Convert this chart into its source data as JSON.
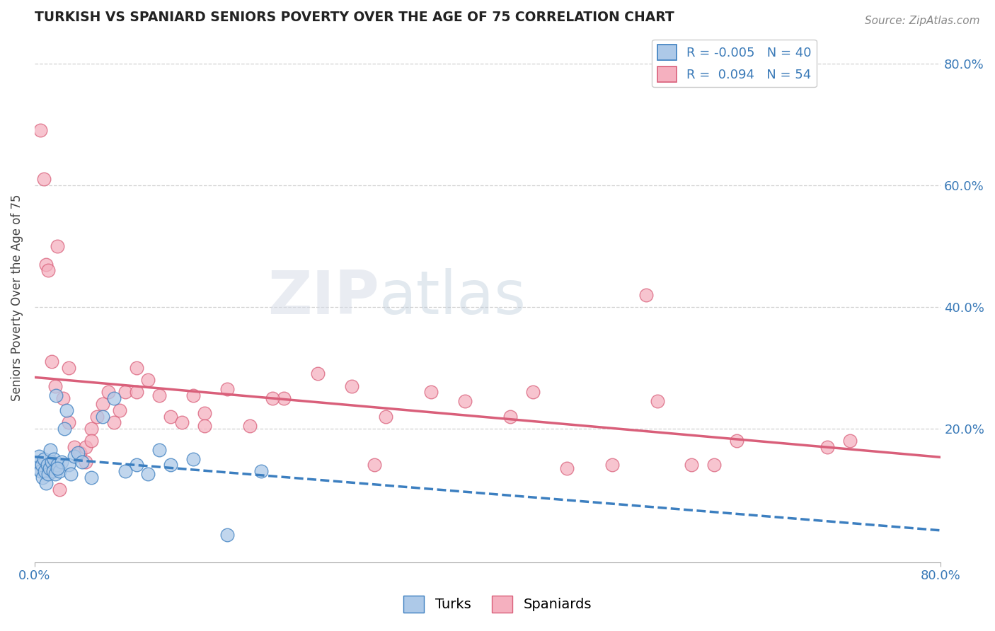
{
  "title": "TURKISH VS SPANIARD SENIORS POVERTY OVER THE AGE OF 75 CORRELATION CHART",
  "source": "Source: ZipAtlas.com",
  "ylabel": "Seniors Poverty Over the Age of 75",
  "legend_turks": "Turks",
  "legend_spaniards": "Spaniards",
  "turks_R": "-0.005",
  "turks_N": "40",
  "spaniards_R": "0.094",
  "spaniards_N": "54",
  "turks_color": "#adc9e8",
  "spaniards_color": "#f5b0bf",
  "turks_line_color": "#3c7fc0",
  "spaniards_line_color": "#d95f7a",
  "watermark_zip": "ZIP",
  "watermark_atlas": "atlas",
  "turks_x": [
    0.2,
    0.3,
    0.4,
    0.5,
    0.6,
    0.7,
    0.8,
    0.9,
    1.0,
    1.1,
    1.2,
    1.3,
    1.4,
    1.5,
    1.6,
    1.7,
    1.8,
    1.9,
    2.0,
    2.2,
    2.4,
    2.6,
    2.8,
    3.0,
    3.2,
    3.5,
    3.8,
    4.2,
    5.0,
    6.0,
    7.0,
    8.0,
    9.0,
    10.0,
    11.0,
    12.0,
    14.0,
    17.0,
    20.0,
    2.0
  ],
  "turks_y": [
    13.5,
    14.5,
    15.5,
    13.0,
    14.0,
    12.0,
    15.0,
    13.0,
    11.0,
    14.0,
    12.5,
    13.5,
    16.5,
    14.5,
    13.0,
    15.0,
    12.5,
    25.5,
    14.0,
    13.0,
    14.5,
    20.0,
    23.0,
    14.0,
    12.5,
    15.5,
    16.0,
    14.5,
    12.0,
    22.0,
    25.0,
    13.0,
    14.0,
    12.5,
    16.5,
    14.0,
    15.0,
    2.5,
    13.0,
    13.5
  ],
  "spaniards_x": [
    0.5,
    0.8,
    1.0,
    1.2,
    1.5,
    1.8,
    2.0,
    2.5,
    3.0,
    3.5,
    4.0,
    4.5,
    5.0,
    5.5,
    6.0,
    6.5,
    7.0,
    7.5,
    8.0,
    9.0,
    10.0,
    11.0,
    12.0,
    13.0,
    14.0,
    15.0,
    17.0,
    19.0,
    22.0,
    25.0,
    28.0,
    31.0,
    35.0,
    38.0,
    42.0,
    44.0,
    55.0,
    58.0,
    60.0,
    62.0,
    3.0,
    9.0,
    15.0,
    21.0,
    5.0,
    30.0,
    47.0,
    51.0,
    54.0,
    70.0,
    72.0,
    1.5,
    4.5,
    2.2
  ],
  "spaniards_y": [
    69.0,
    61.0,
    47.0,
    46.0,
    31.0,
    27.0,
    50.0,
    25.0,
    21.0,
    17.0,
    16.0,
    17.0,
    20.0,
    22.0,
    24.0,
    26.0,
    21.0,
    23.0,
    26.0,
    30.0,
    28.0,
    25.5,
    22.0,
    21.0,
    25.5,
    22.5,
    26.5,
    20.5,
    25.0,
    29.0,
    27.0,
    22.0,
    26.0,
    24.5,
    22.0,
    26.0,
    24.5,
    14.0,
    14.0,
    18.0,
    30.0,
    26.0,
    20.5,
    25.0,
    18.0,
    14.0,
    13.5,
    14.0,
    42.0,
    17.0,
    18.0,
    13.0,
    14.5,
    10.0
  ],
  "xlim": [
    0.0,
    80.0
  ],
  "ylim": [
    -2.0,
    85.0
  ],
  "yticks": [
    20.0,
    40.0,
    60.0,
    80.0
  ]
}
